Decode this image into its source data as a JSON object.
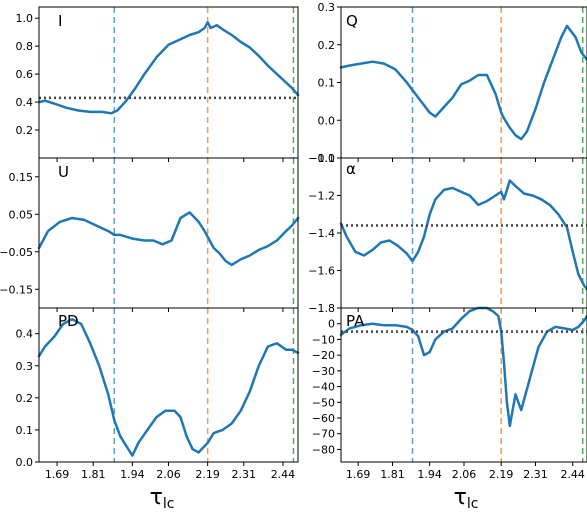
{
  "figure": {
    "xlabel": "τ",
    "xlabel_sub": "lc",
    "x_tick_labels": [
      "1.69",
      "1.81",
      "1.94",
      "2.06",
      "2.19",
      "2.31",
      "2.44"
    ],
    "colors": {
      "line": "#1f77b4",
      "vline_blue": "#5a9fd4",
      "vline_orange": "#ff9a3c",
      "vline_green": "#4fb04f",
      "hline": "#444444"
    }
  },
  "chart_data": [
    {
      "panel": "I",
      "type": "line",
      "label": "I",
      "xlim": [
        1.63,
        2.49
      ],
      "ylim": [
        0.0,
        1.08
      ],
      "yticks": [
        0.2,
        0.4,
        0.6,
        0.8,
        1.0
      ],
      "ytick_labels": [
        "0.2",
        "0.4",
        "0.6",
        "0.8",
        "1.0"
      ],
      "hline": 0.43,
      "vlines": [
        1.88,
        2.19,
        2.475
      ],
      "x": [
        1.63,
        1.65,
        1.68,
        1.72,
        1.76,
        1.8,
        1.84,
        1.87,
        1.89,
        1.92,
        1.95,
        1.98,
        2.02,
        2.06,
        2.1,
        2.13,
        2.16,
        2.18,
        2.19,
        2.2,
        2.22,
        2.24,
        2.27,
        2.3,
        2.33,
        2.36,
        2.39,
        2.42,
        2.45,
        2.47,
        2.49
      ],
      "y": [
        0.4,
        0.41,
        0.39,
        0.36,
        0.34,
        0.33,
        0.33,
        0.32,
        0.34,
        0.41,
        0.5,
        0.6,
        0.72,
        0.81,
        0.85,
        0.88,
        0.9,
        0.93,
        0.97,
        0.93,
        0.95,
        0.92,
        0.88,
        0.83,
        0.79,
        0.73,
        0.66,
        0.6,
        0.54,
        0.5,
        0.45
      ]
    },
    {
      "panel": "Q",
      "type": "line",
      "label": "Q",
      "xlim": [
        1.63,
        2.49
      ],
      "ylim": [
        -0.1,
        0.3
      ],
      "yticks": [
        -0.1,
        0.0,
        0.1,
        0.2,
        0.3
      ],
      "ytick_labels": [
        "−0.1",
        "0.0",
        "0.1",
        "0.2",
        "0.3"
      ],
      "hline": null,
      "vlines": [
        1.88,
        2.19,
        2.475
      ],
      "x": [
        1.63,
        1.66,
        1.7,
        1.74,
        1.78,
        1.82,
        1.86,
        1.88,
        1.9,
        1.92,
        1.94,
        1.96,
        1.99,
        2.02,
        2.05,
        2.08,
        2.11,
        2.14,
        2.17,
        2.19,
        2.2,
        2.22,
        2.24,
        2.26,
        2.28,
        2.31,
        2.34,
        2.37,
        2.4,
        2.42,
        2.45,
        2.47,
        2.49
      ],
      "y": [
        0.14,
        0.145,
        0.15,
        0.155,
        0.15,
        0.135,
        0.1,
        0.08,
        0.06,
        0.04,
        0.02,
        0.01,
        0.035,
        0.06,
        0.095,
        0.105,
        0.12,
        0.12,
        0.07,
        0.02,
        0.005,
        -0.02,
        -0.04,
        -0.05,
        -0.03,
        0.03,
        0.1,
        0.16,
        0.22,
        0.25,
        0.22,
        0.18,
        0.16
      ]
    },
    {
      "panel": "U",
      "type": "line",
      "label": "U",
      "xlim": [
        1.63,
        2.49
      ],
      "ylim": [
        -0.2,
        0.2
      ],
      "yticks": [
        -0.15,
        -0.05,
        0.05,
        0.15
      ],
      "ytick_labels": [
        "−0.15",
        "−0.05",
        "0.05",
        "0.15"
      ],
      "hline": null,
      "vlines": [
        1.88,
        2.19,
        2.475
      ],
      "x": [
        1.63,
        1.66,
        1.7,
        1.74,
        1.78,
        1.82,
        1.86,
        1.88,
        1.9,
        1.94,
        1.98,
        2.01,
        2.04,
        2.07,
        2.1,
        2.13,
        2.16,
        2.18,
        2.19,
        2.21,
        2.23,
        2.25,
        2.27,
        2.3,
        2.33,
        2.36,
        2.39,
        2.42,
        2.45,
        2.47,
        2.49
      ],
      "y": [
        -0.04,
        0.005,
        0.03,
        0.04,
        0.035,
        0.02,
        0.005,
        -0.005,
        -0.005,
        -0.015,
        -0.02,
        -0.02,
        -0.03,
        -0.02,
        0.04,
        0.055,
        0.03,
        0.005,
        -0.01,
        -0.04,
        -0.055,
        -0.075,
        -0.085,
        -0.07,
        -0.06,
        -0.045,
        -0.035,
        -0.02,
        0.005,
        0.02,
        0.04
      ]
    },
    {
      "panel": "alpha",
      "type": "line",
      "label": "α",
      "xlim": [
        1.63,
        2.49
      ],
      "ylim": [
        -1.8,
        -1.0
      ],
      "yticks": [
        -1.8,
        -1.6,
        -1.4,
        -1.2,
        -1.0
      ],
      "ytick_labels": [
        "−1.8",
        "−1.6",
        "−1.4",
        "−1.2",
        "−1.0"
      ],
      "hline": -1.36,
      "vlines": [
        1.88,
        2.19,
        2.475
      ],
      "x": [
        1.63,
        1.65,
        1.68,
        1.71,
        1.74,
        1.77,
        1.8,
        1.83,
        1.86,
        1.88,
        1.9,
        1.92,
        1.94,
        1.96,
        1.99,
        2.02,
        2.05,
        2.08,
        2.11,
        2.14,
        2.17,
        2.19,
        2.2,
        2.22,
        2.24,
        2.27,
        2.3,
        2.33,
        2.36,
        2.39,
        2.42,
        2.44,
        2.46,
        2.48,
        2.49
      ],
      "y": [
        -1.35,
        -1.42,
        -1.5,
        -1.52,
        -1.49,
        -1.45,
        -1.44,
        -1.47,
        -1.51,
        -1.55,
        -1.5,
        -1.42,
        -1.3,
        -1.22,
        -1.17,
        -1.16,
        -1.18,
        -1.2,
        -1.25,
        -1.23,
        -1.2,
        -1.18,
        -1.22,
        -1.12,
        -1.15,
        -1.19,
        -1.2,
        -1.22,
        -1.25,
        -1.3,
        -1.37,
        -1.5,
        -1.62,
        -1.68,
        -1.7
      ]
    },
    {
      "panel": "PD",
      "type": "line",
      "label": "PD",
      "xlim": [
        1.63,
        2.49
      ],
      "ylim": [
        0.0,
        0.48
      ],
      "yticks": [
        0.0,
        0.1,
        0.2,
        0.3,
        0.4
      ],
      "ytick_labels": [
        "0.0",
        "0.1",
        "0.2",
        "0.3",
        "0.4"
      ],
      "hline": null,
      "vlines": [
        1.88,
        2.19,
        2.475
      ],
      "x": [
        1.63,
        1.65,
        1.68,
        1.71,
        1.74,
        1.77,
        1.8,
        1.83,
        1.86,
        1.88,
        1.9,
        1.92,
        1.94,
        1.96,
        1.99,
        2.02,
        2.05,
        2.08,
        2.1,
        2.12,
        2.14,
        2.16,
        2.19,
        2.21,
        2.24,
        2.27,
        2.3,
        2.33,
        2.36,
        2.39,
        2.42,
        2.45,
        2.47,
        2.49
      ],
      "y": [
        0.33,
        0.36,
        0.39,
        0.43,
        0.445,
        0.43,
        0.37,
        0.3,
        0.21,
        0.13,
        0.08,
        0.05,
        0.02,
        0.06,
        0.1,
        0.14,
        0.16,
        0.16,
        0.14,
        0.08,
        0.04,
        0.03,
        0.06,
        0.09,
        0.1,
        0.12,
        0.16,
        0.22,
        0.3,
        0.36,
        0.37,
        0.35,
        0.35,
        0.34
      ]
    },
    {
      "panel": "PA",
      "type": "line",
      "label": "PA",
      "xlim": [
        1.63,
        2.49
      ],
      "ylim": [
        -88,
        10
      ],
      "yticks": [
        -80,
        -70,
        -60,
        -50,
        -40,
        -30,
        -20,
        -10,
        0
      ],
      "ytick_labels": [
        "−80",
        "−70",
        "−60",
        "−50",
        "−40",
        "−30",
        "−20",
        "−10",
        "0"
      ],
      "hline": -5,
      "vlines": [
        1.88,
        2.19,
        2.475
      ],
      "x": [
        1.63,
        1.66,
        1.7,
        1.74,
        1.78,
        1.82,
        1.86,
        1.88,
        1.9,
        1.92,
        1.94,
        1.96,
        1.99,
        2.02,
        2.05,
        2.08,
        2.11,
        2.14,
        2.16,
        2.18,
        2.19,
        2.2,
        2.21,
        2.22,
        2.24,
        2.26,
        2.29,
        2.32,
        2.35,
        2.38,
        2.41,
        2.44,
        2.46,
        2.48,
        2.49
      ],
      "y": [
        -7,
        -3,
        -1,
        0,
        -1,
        -1,
        -2,
        -4,
        -8,
        -20,
        -18,
        -10,
        -5,
        -3,
        3,
        8,
        10,
        10,
        8,
        5,
        -5,
        -25,
        -50,
        -65,
        -45,
        -55,
        -35,
        -15,
        -5,
        -2,
        -3,
        -4,
        -2,
        2,
        5
      ]
    }
  ]
}
